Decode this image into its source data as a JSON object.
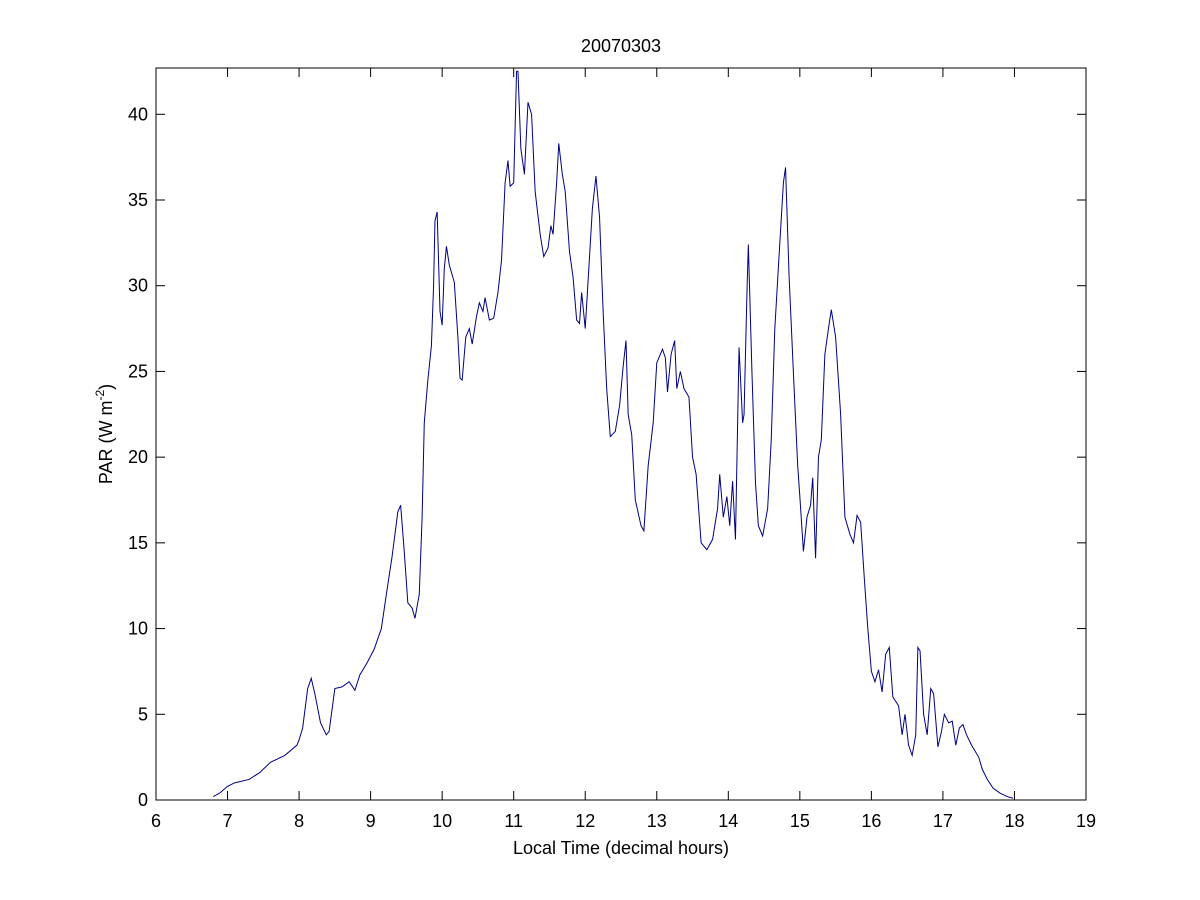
{
  "chart_data": {
    "type": "line",
    "title": "20070303",
    "xlabel": "Local Time (decimal hours)",
    "ylabel": {
      "text": "PAR (W m",
      "superscript": "-2",
      "end": ")"
    },
    "xlim": [
      6,
      19
    ],
    "xticks": [
      6,
      7,
      8,
      9,
      10,
      11,
      12,
      13,
      14,
      15,
      16,
      17,
      18,
      19
    ],
    "ylim": [
      0,
      42.7
    ],
    "yticks": [
      0,
      5,
      10,
      15,
      20,
      25,
      30,
      35,
      40
    ],
    "grid": false,
    "x": [
      6.8,
      6.89,
      7.0,
      7.1,
      7.3,
      7.45,
      7.6,
      7.8,
      7.97,
      8.0,
      8.05,
      8.12,
      8.17,
      8.22,
      8.3,
      8.38,
      8.42,
      8.5,
      8.6,
      8.7,
      8.78,
      8.85,
      8.95,
      9.05,
      9.15,
      9.22,
      9.3,
      9.38,
      9.42,
      9.47,
      9.52,
      9.58,
      9.62,
      9.68,
      9.72,
      9.75,
      9.8,
      9.85,
      9.88,
      9.9,
      9.93,
      9.97,
      10.0,
      10.03,
      10.06,
      10.1,
      10.17,
      10.22,
      10.25,
      10.28,
      10.33,
      10.38,
      10.42,
      10.48,
      10.52,
      10.57,
      10.6,
      10.66,
      10.72,
      10.78,
      10.83,
      10.88,
      10.92,
      10.95,
      11.0,
      11.04,
      11.06,
      11.1,
      11.15,
      11.2,
      11.25,
      11.3,
      11.37,
      11.42,
      11.48,
      11.52,
      11.55,
      11.6,
      11.63,
      11.68,
      11.72,
      11.78,
      11.83,
      11.88,
      11.92,
      11.95,
      12.0,
      12.05,
      12.1,
      12.15,
      12.2,
      12.25,
      12.3,
      12.35,
      12.42,
      12.48,
      12.53,
      12.57,
      12.6,
      12.65,
      12.7,
      12.78,
      12.82,
      12.88,
      12.95,
      13.0,
      13.05,
      13.08,
      13.12,
      13.15,
      13.2,
      13.25,
      13.28,
      13.33,
      13.38,
      13.45,
      13.5,
      13.55,
      13.62,
      13.7,
      13.78,
      13.85,
      13.88,
      13.93,
      13.98,
      14.02,
      14.06,
      14.1,
      14.15,
      14.2,
      14.22,
      14.26,
      14.28,
      14.33,
      14.38,
      14.42,
      14.48,
      14.55,
      14.6,
      14.65,
      14.72,
      14.77,
      14.8,
      14.85,
      14.92,
      14.97,
      15.0,
      15.05,
      15.1,
      15.15,
      15.18,
      15.22,
      15.26,
      15.3,
      15.35,
      15.4,
      15.44,
      15.5,
      15.57,
      15.63,
      15.7,
      15.75,
      15.8,
      15.85,
      15.9,
      15.95,
      16.0,
      16.05,
      16.1,
      16.15,
      16.2,
      16.25,
      16.3,
      16.38,
      16.43,
      16.47,
      16.52,
      16.57,
      16.62,
      16.65,
      16.68,
      16.73,
      16.78,
      16.83,
      16.87,
      16.93,
      16.98,
      17.02,
      17.08,
      17.13,
      17.18,
      17.23,
      17.28,
      17.33,
      17.4,
      17.5,
      17.55,
      17.62,
      17.7,
      17.8,
      17.9,
      17.98
    ],
    "series": [
      {
        "color": "#000080",
        "values": [
          0.2,
          0.4,
          0.8,
          1.0,
          1.2,
          1.6,
          2.2,
          2.6,
          3.2,
          3.5,
          4.2,
          6.5,
          7.1,
          6.2,
          4.5,
          3.8,
          4.0,
          6.5,
          6.6,
          6.9,
          6.4,
          7.3,
          8.0,
          8.8,
          10.0,
          12.0,
          14.2,
          16.8,
          17.2,
          14.5,
          11.5,
          11.2,
          10.6,
          12.0,
          16.5,
          22,
          24.5,
          26.5,
          30,
          33.8,
          34.3,
          28.5,
          27.7,
          31,
          32.3,
          31.2,
          30.2,
          27,
          24.6,
          24.5,
          27.0,
          27.5,
          26.6,
          28.2,
          29.0,
          28.5,
          29.3,
          28.0,
          28.1,
          29.6,
          31.5,
          36.0,
          37.3,
          35.8,
          36.0,
          42.5,
          42.5,
          38,
          36.5,
          40.7,
          40,
          35.5,
          33.0,
          31.7,
          32.2,
          33.5,
          33.0,
          36.0,
          38.3,
          36.5,
          35.5,
          32,
          30.5,
          28.0,
          27.8,
          29.6,
          27.5,
          31,
          34.5,
          36.4,
          34.0,
          28.5,
          24,
          21.2,
          21.5,
          23.0,
          25.3,
          26.8,
          22.5,
          21.3,
          17.5,
          16.0,
          15.7,
          19.5,
          22.0,
          25.5,
          26.0,
          26.3,
          25.8,
          23.8,
          26.0,
          26.8,
          24.0,
          25.0,
          24.0,
          23.5,
          20.0,
          19.0,
          15.0,
          14.6,
          15.2,
          17.0,
          19.0,
          16.5,
          17.7,
          16.0,
          18.6,
          15.2,
          26.4,
          22.0,
          22.5,
          29.5,
          32.4,
          25.0,
          18.5,
          16.0,
          15.4,
          17.0,
          21.0,
          27.5,
          32.5,
          36.0,
          36.9,
          30.5,
          24.0,
          19.5,
          17.7,
          14.5,
          16.5,
          17.2,
          18.8,
          14.1,
          20.0,
          21.0,
          26.0,
          27.5,
          28.6,
          27.0,
          22.5,
          16.5,
          15.5,
          15.0,
          16.6,
          16.2,
          13.0,
          10.0,
          7.5,
          6.9,
          7.6,
          6.3,
          8.5,
          8.9,
          6.0,
          5.5,
          3.8,
          5.0,
          3.2,
          2.6,
          3.8,
          8.9,
          8.7,
          5.0,
          3.8,
          6.5,
          6.2,
          3.1,
          4.0,
          5.0,
          4.5,
          4.6,
          3.2,
          4.2,
          4.4,
          3.8,
          3.2,
          2.5,
          1.8,
          1.2,
          0.7,
          0.4,
          0.2,
          0.1
        ]
      }
    ]
  }
}
